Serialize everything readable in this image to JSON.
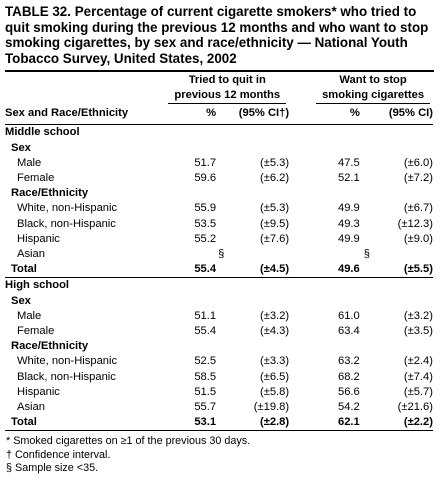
{
  "title": "TABLE 32. Percentage of current cigarette smokers* who tried to quit smoking during the previous 12 months and who want to stop smoking cigarettes, by sex and race/ethnicity — National Youth Tobacco Survey, United States, 2002",
  "groups": {
    "quit": "Tried to quit in previous 12 months",
    "quit_line1": "Tried to quit in",
    "quit_line2": "previous 12 months",
    "stop_line1": "Want to stop",
    "stop_line2": "smoking cigarettes"
  },
  "columns": {
    "label": "Sex and Race/Ethnicity",
    "pct1": "%",
    "ci1": "(95% CI†)",
    "pct2": "%",
    "ci2": "(95% CI)"
  },
  "rows": [
    {
      "type": "sec",
      "label": "Middle school"
    },
    {
      "type": "sub",
      "label": "Sex"
    },
    {
      "type": "row",
      "label": "Male",
      "p1": "51.7",
      "ci1": "(±5.3)",
      "p2": "47.5",
      "ci2": "(±6.0)"
    },
    {
      "type": "row",
      "label": "Female",
      "p1": "59.6",
      "ci1": "(±6.2)",
      "p2": "52.1",
      "ci2": "(±7.2)"
    },
    {
      "type": "sub",
      "label": "Race/Ethnicity"
    },
    {
      "type": "row",
      "label": "White, non-Hispanic",
      "p1": "55.9",
      "ci1": "(±5.3)",
      "p2": "49.9",
      "ci2": "(±6.7)"
    },
    {
      "type": "row",
      "label": "Black, non-Hispanic",
      "p1": "53.5",
      "ci1": "(±9.5)",
      "p2": "49.3",
      "ci2": "(±12.3)"
    },
    {
      "type": "row",
      "label": "Hispanic",
      "p1": "55.2",
      "ci1": "(±7.6)",
      "p2": "49.9",
      "ci2": "(±9.0)"
    },
    {
      "type": "row",
      "label": "Asian",
      "p1": "§",
      "ci1": "",
      "p2": "§",
      "ci2": "",
      "suppressed": true
    },
    {
      "type": "tot-inner",
      "label": "Total",
      "p1": "55.4",
      "ci1": "(±4.5)",
      "p2": "49.6",
      "ci2": "(±5.5)"
    },
    {
      "type": "sec",
      "label": "High school"
    },
    {
      "type": "sub",
      "label": "Sex"
    },
    {
      "type": "row",
      "label": "Male",
      "p1": "51.1",
      "ci1": "(±3.2)",
      "p2": "61.0",
      "ci2": "(±3.2)"
    },
    {
      "type": "row",
      "label": "Female",
      "p1": "55.4",
      "ci1": "(±4.3)",
      "p2": "63.4",
      "ci2": "(±3.5)"
    },
    {
      "type": "sub",
      "label": "Race/Ethnicity"
    },
    {
      "type": "row",
      "label": "White, non-Hispanic",
      "p1": "52.5",
      "ci1": "(±3.3)",
      "p2": "63.2",
      "ci2": "(±2.4)"
    },
    {
      "type": "row",
      "label": "Black, non-Hispanic",
      "p1": "58.5",
      "ci1": "(±6.5)",
      "p2": "68.2",
      "ci2": "(±7.4)"
    },
    {
      "type": "row",
      "label": "Hispanic",
      "p1": "51.5",
      "ci1": "(±5.8)",
      "p2": "56.6",
      "ci2": "(±5.7)"
    },
    {
      "type": "row",
      "label": "Asian",
      "p1": "55.7",
      "ci1": "(±19.8)",
      "p2": "54.2",
      "ci2": "(±21.6)"
    },
    {
      "type": "tot",
      "label": "Total",
      "p1": "53.1",
      "ci1": "(±2.8)",
      "p2": "62.1",
      "ci2": "(±2.2)"
    }
  ],
  "footnotes": [
    "* Smoked cigarettes on ≥1 of the previous 30 days.",
    "† Confidence interval.",
    "§ Sample size <35."
  ]
}
